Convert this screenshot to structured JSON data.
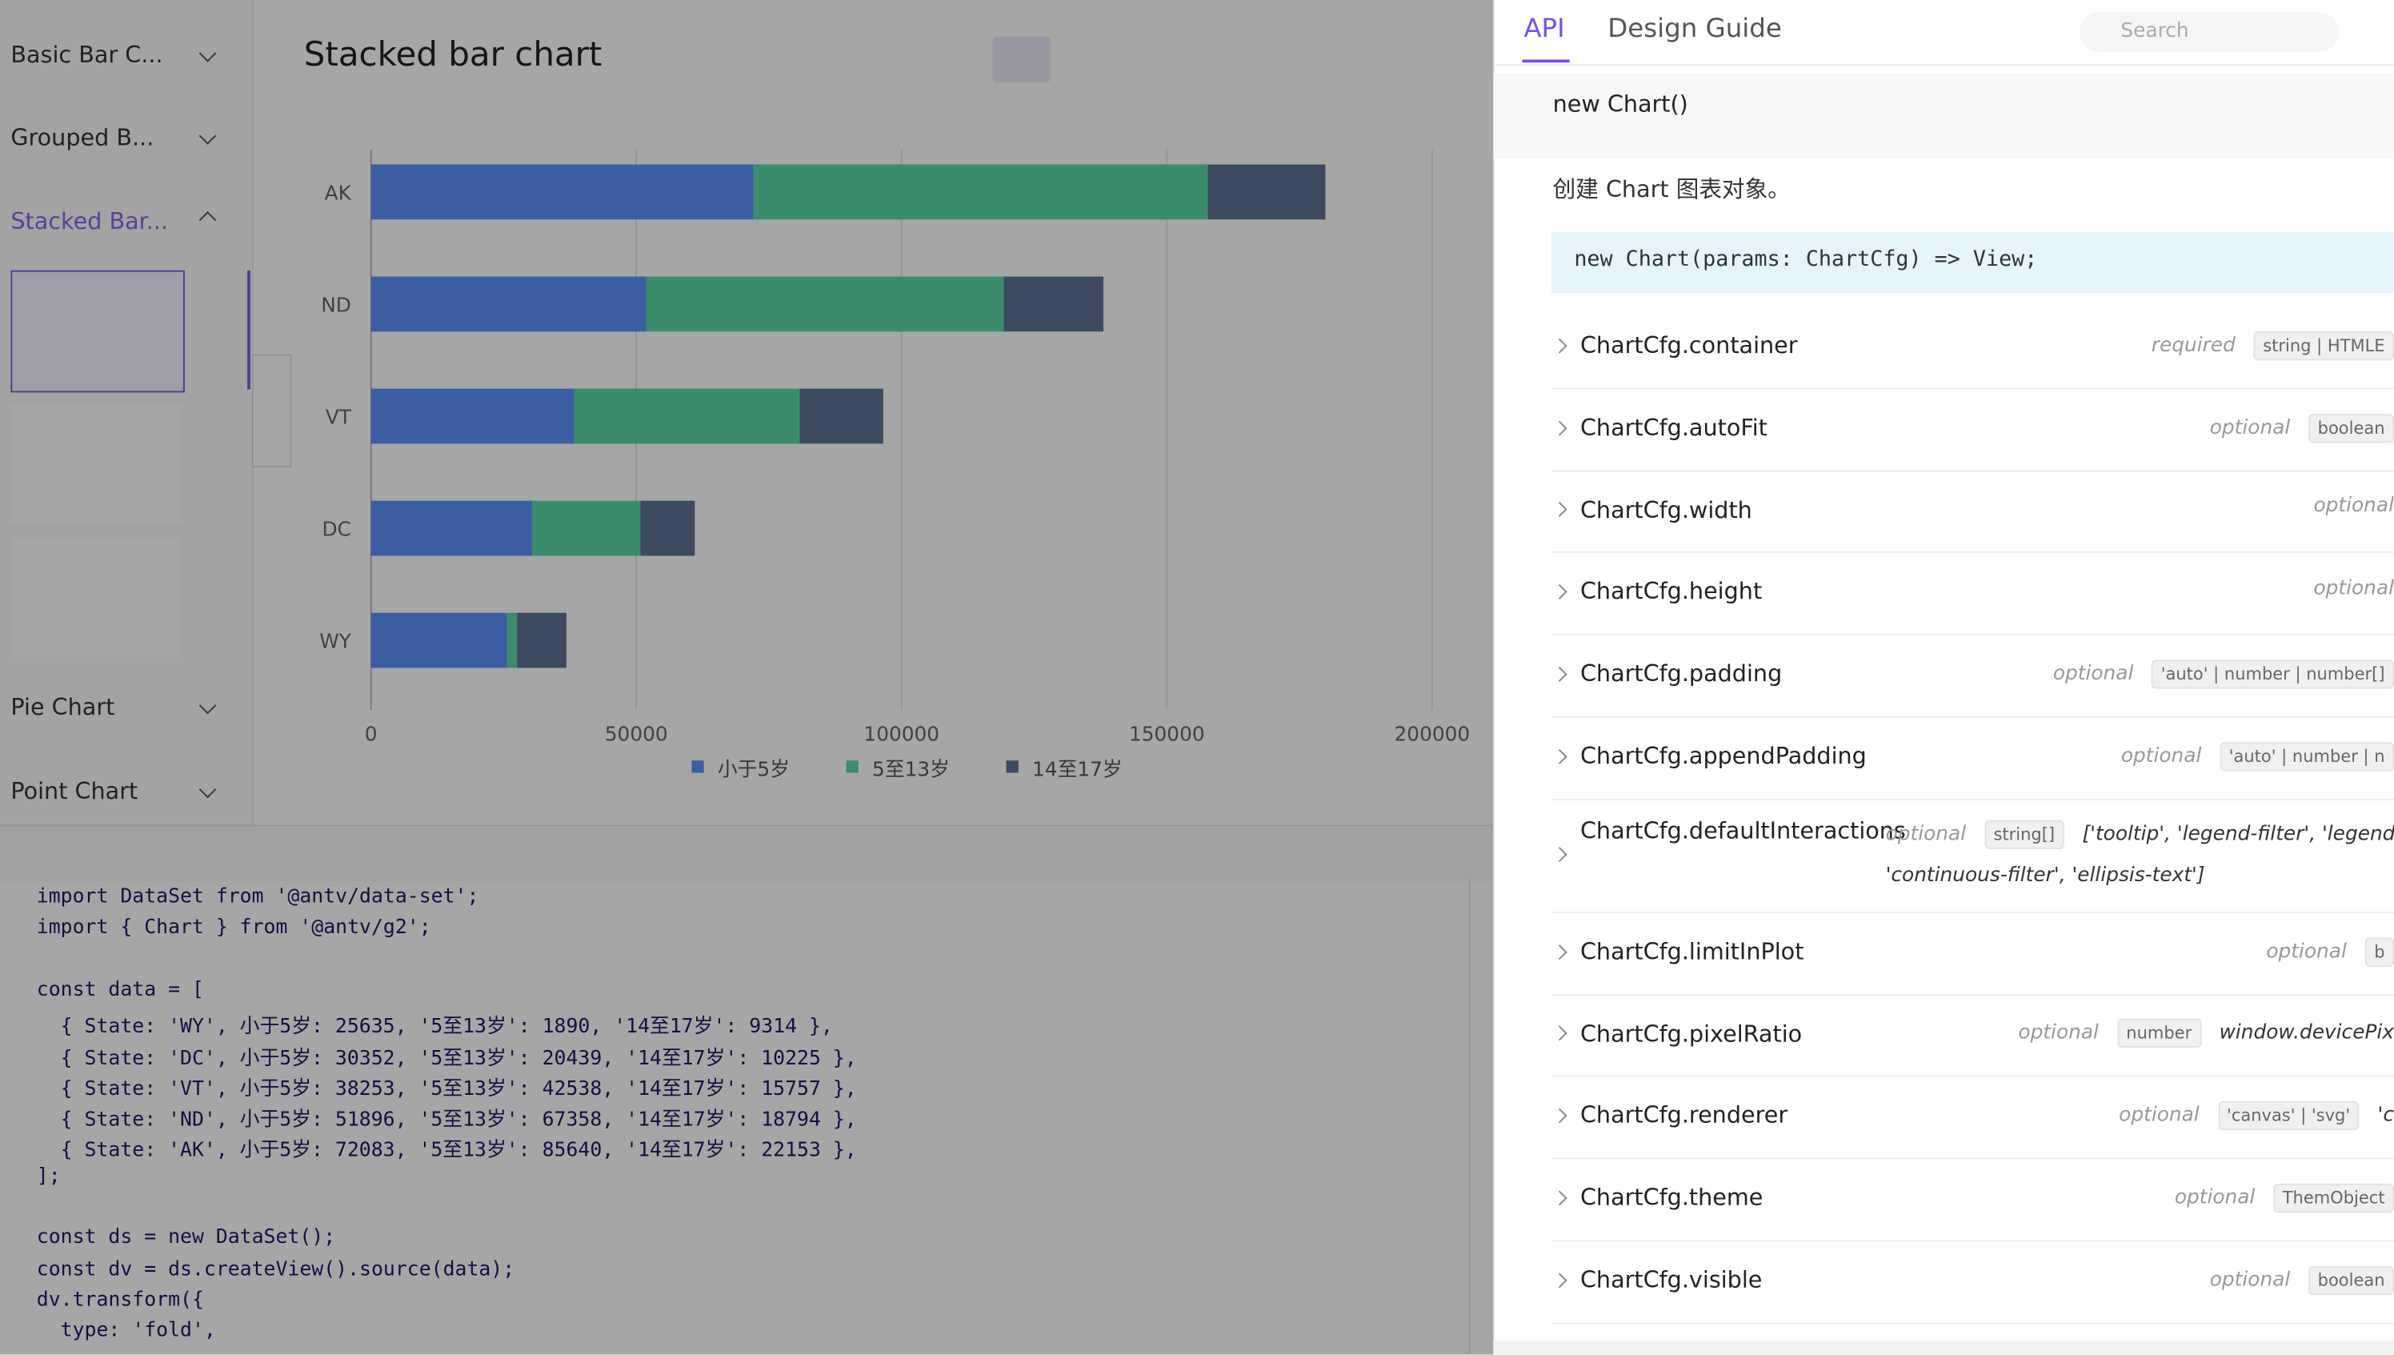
{
  "sidebar": {
    "items": [
      "Basic Bar C...",
      "Grouped B...",
      "Stacked Bar...",
      "Pie Chart",
      "Point Chart"
    ]
  },
  "chart_panel": {
    "title": "Stacked bar chart"
  },
  "chart_data": {
    "type": "bar",
    "orientation": "horizontal",
    "stacked": true,
    "categories": [
      "AK",
      "ND",
      "VT",
      "DC",
      "WY"
    ],
    "series": [
      {
        "name": "小于5岁",
        "color": "#5B8FF9",
        "values": [
          72083,
          51896,
          38253,
          30352,
          25635
        ]
      },
      {
        "name": "5至13岁",
        "color": "#5AD8A6",
        "values": [
          85640,
          67358,
          42538,
          20439,
          1890
        ]
      },
      {
        "name": "14至17岁",
        "color": "#5D7092",
        "values": [
          22153,
          18794,
          15757,
          10225,
          9314
        ]
      }
    ],
    "xlim": [
      0,
      200000
    ],
    "xticks": [
      0,
      50000,
      100000,
      150000,
      200000
    ],
    "grid": true,
    "legend": "bottom"
  },
  "code": {
    "blocks": [
      [
        "import DataSet from '@antv/data-set';",
        "import { Chart } from '@antv/g2';"
      ],
      [
        "const data = [",
        "  { State: 'WY', 小于5岁: 25635, '5至13岁': 1890, '14至17岁': 9314 },",
        "  { State: 'DC', 小于5岁: 30352, '5至13岁': 20439, '14至17岁': 10225 },",
        "  { State: 'VT', 小于5岁: 38253, '5至13岁': 42538, '14至17岁': 15757 },",
        "  { State: 'ND', 小于5岁: 51896, '5至13岁': 67358, '14至17岁': 18794 },",
        "  { State: 'AK', 小于5岁: 72083, '5至13岁': 85640, '14至17岁': 22153 },",
        "];"
      ],
      [
        "const ds = new DataSet();",
        "const dv = ds.createView().source(data);",
        "dv.transform({",
        "  type: 'fold',"
      ]
    ]
  },
  "docs": {
    "tabs": [
      "API",
      "Design Guide"
    ],
    "search": "Search",
    "section": "new Chart()",
    "description": "创建 Chart 图表对象。",
    "signature": "new Chart(params: ChartCfg) => View;",
    "props": [
      {
        "name": "ChartCfg.container",
        "flag": "required",
        "type": "string | HTMLE"
      },
      {
        "name": "ChartCfg.autoFit",
        "flag": "optional",
        "type": "boolean"
      },
      {
        "name": "ChartCfg.width",
        "flag": "optional"
      },
      {
        "name": "ChartCfg.height",
        "flag": "optional"
      },
      {
        "name": "ChartCfg.padding",
        "flag": "optional",
        "type": "'auto' | number | number[]"
      },
      {
        "name": "ChartCfg.appendPadding",
        "flag": "optional",
        "type": "'auto' | number | n"
      },
      {
        "name": "ChartCfg.defaultInteractions",
        "flag": "optional",
        "type": "string[]",
        "default": [
          "['tooltip', 'legend-filter', 'legend-ac",
          "'continuous-filter', 'ellipsis-text']"
        ]
      },
      {
        "name": "ChartCfg.limitInPlot",
        "flag": "optional",
        "type": "b"
      },
      {
        "name": "ChartCfg.pixelRatio",
        "flag": "optional",
        "type": "number",
        "default": [
          "window.devicePix"
        ]
      },
      {
        "name": "ChartCfg.renderer",
        "flag": "optional",
        "type": "'canvas' | 'svg'",
        "default": [
          "'c"
        ]
      },
      {
        "name": "ChartCfg.theme",
        "flag": "optional",
        "type": "ThemObject"
      },
      {
        "name": "ChartCfg.visible",
        "flag": "optional",
        "type": "boolean"
      }
    ]
  }
}
